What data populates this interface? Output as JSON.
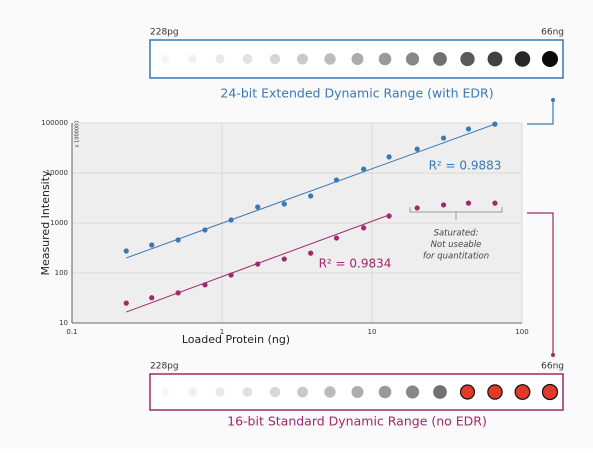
{
  "chart_data": {
    "type": "scatter",
    "x_label": "Loaded Protein (ng)",
    "y_label": "Measured Intensity",
    "y_unit_note": "x 1000000",
    "x": [
      0.23,
      0.34,
      0.51,
      0.77,
      1.15,
      1.73,
      2.6,
      3.9,
      5.8,
      8.8,
      13,
      20,
      30,
      44,
      66
    ],
    "series": [
      {
        "name": "24-bit Extended Dynamic Range (with EDR)",
        "color": "#3a78b5",
        "values": [
          275,
          363,
          457,
          724,
          1150,
          2090,
          2400,
          3470,
          7240,
          12000,
          21000,
          30000,
          50000,
          76000,
          95000
        ],
        "fit_x": [
          0.23,
          66
        ],
        "fit_y": [
          200,
          95000
        ],
        "r2_label": "R² = 0.9883"
      },
      {
        "name": "16-bit Standard Dynamic Range (no EDR)",
        "color": "#a1286a",
        "values": [
          25,
          32,
          40,
          58,
          91,
          151,
          190,
          250,
          500,
          800,
          1380,
          2000,
          2300,
          2500,
          2500
        ],
        "fit_x": [
          0.23,
          13
        ],
        "fit_y": [
          16.6,
          1450
        ],
        "r2_label": "R² = 0.9834"
      }
    ],
    "saturated_note": [
      "Saturated:",
      "Not useable",
      "for quantitation"
    ],
    "blot_start_label": "228pg",
    "blot_end_label": "66ng",
    "xlim": [
      0.1,
      100
    ],
    "xticks": [
      0.1,
      1,
      10,
      100
    ],
    "ylim": [
      10,
      100000
    ],
    "yticks": [
      10,
      100,
      1000,
      10000,
      100000
    ],
    "log_x": true,
    "log_y": true,
    "grid": true
  }
}
